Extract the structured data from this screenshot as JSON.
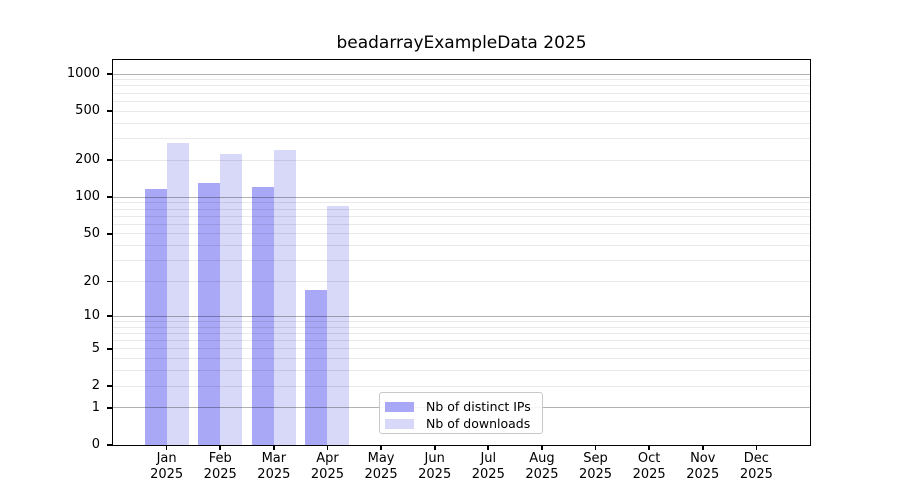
{
  "chart_data": {
    "type": "bar",
    "title": "beadarrayExampleData 2025",
    "categories": [
      "Jan",
      "Feb",
      "Mar",
      "Apr",
      "May",
      "Jun",
      "Jul",
      "Aug",
      "Sep",
      "Oct",
      "Nov",
      "Dec"
    ],
    "x_tick_year": "2025",
    "series": [
      {
        "name": "Nb of distinct IPs",
        "color": "#a8a8f7",
        "values": [
          117,
          131,
          121,
          17,
          0,
          0,
          0,
          0,
          0,
          0,
          0,
          0
        ]
      },
      {
        "name": "Nb of downloads",
        "color": "#d8d8f8",
        "values": [
          275,
          225,
          240,
          84,
          0,
          0,
          0,
          0,
          0,
          0,
          0,
          0
        ]
      }
    ],
    "yscale": "log1p",
    "ylim": [
      0,
      1300
    ],
    "y_ticks": [
      0,
      1,
      2,
      5,
      10,
      20,
      50,
      100,
      200,
      500,
      1000
    ],
    "grid": "horizontal, minor log divisions, drawn over bars",
    "legend_position": "lower center",
    "xlabel": "",
    "ylabel": "",
    "colors": {
      "axis": "#000000",
      "major_grid": "rgba(0,0,0,0.30)",
      "minor_grid": "rgba(0,0,0,0.085)",
      "background": "#ffffff"
    }
  }
}
